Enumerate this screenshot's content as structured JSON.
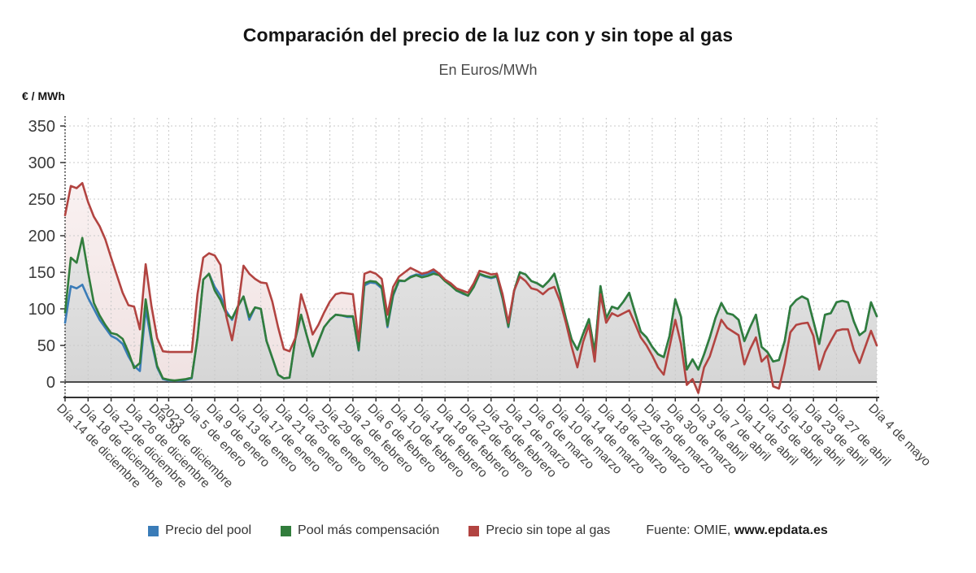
{
  "header": {
    "title": "Comparación del precio de la luz con y sin tope al gas",
    "subtitle": "En Euros/MWh"
  },
  "source": {
    "prefix": "Fuente: OMIE,",
    "site": "www.epdata.es"
  },
  "chart_data": {
    "type": "line",
    "title": "Comparación del precio de la luz con y sin tope al gas",
    "subtitle": "En Euros/MWh",
    "ylabel": "€ / MWh",
    "xlabel": "",
    "ylim": [
      -20,
      363
    ],
    "y_ticks": [
      0,
      50,
      100,
      150,
      200,
      250,
      300,
      350
    ],
    "grid": true,
    "legend_position": "bottom",
    "n_points": 142,
    "x_tick_positions": [
      0,
      4,
      8,
      12,
      16,
      18,
      22,
      26,
      30,
      34,
      38,
      42,
      46,
      50,
      54,
      58,
      62,
      66,
      70,
      74,
      78,
      82,
      86,
      90,
      94,
      98,
      102,
      106,
      110,
      114,
      118,
      122,
      126,
      130,
      134,
      141
    ],
    "x_tick_labels": [
      "Día 14 de diciembre",
      "Día 18 de diciembre",
      "Día 22 de diciembre",
      "Día 26 de diciembre",
      "Día 30 de diciembre",
      "2023",
      "Día 5 de enero",
      "Día 9 de enero",
      "Día 13 de enero",
      "Día 17 de enero",
      "Día 21 de enero",
      "Día 25 de enero",
      "Día 29 de enero",
      "Día 2 de febrero",
      "Día 6 de febrero",
      "Día 10 de febrero",
      "Día 14 de febrero",
      "Día 18 de febrero",
      "Día 22 de febrero",
      "Día 26 de febrero",
      "Día 2 de marzo",
      "Día 6 de marzo",
      "Día 10 de marzo",
      "Día 14 de marzo",
      "Día 18 de marzo",
      "Día 22 de marzo",
      "Día 26 de marzo",
      "Día 30 de marzo",
      "Día 3 de abril",
      "Día 7 de abril",
      "Día 11 de abril",
      "Día 15 de abril",
      "Día 19 de abril",
      "Día 23 de abril",
      "Día 27 de abril",
      "Día 4 de mayo"
    ],
    "series": [
      {
        "name": "Precio del pool",
        "color": "#3a7cb8",
        "area": null,
        "values": [
          81,
          131,
          128,
          133,
          115,
          100,
          85,
          74,
          63,
          59,
          52,
          35,
          22,
          15,
          100,
          55,
          20,
          4,
          2,
          2,
          2,
          3,
          5,
          60,
          140,
          148,
          130,
          118,
          97,
          85,
          103,
          117,
          85,
          102,
          100,
          56,
          33,
          10,
          5,
          6,
          59,
          92,
          63,
          35,
          55,
          75,
          85,
          92,
          91,
          89,
          89,
          43,
          132,
          136,
          135,
          128,
          75,
          118,
          138,
          138,
          144,
          147,
          146,
          148,
          151,
          148,
          139,
          132,
          125,
          121,
          118,
          130,
          147,
          144,
          142,
          144,
          114,
          75,
          124,
          150,
          147,
          138,
          135,
          130,
          138,
          148,
          120,
          87,
          58,
          44,
          66,
          86,
          41,
          131,
          87,
          103,
          100,
          110,
          122,
          95,
          69,
          61,
          48,
          38,
          34,
          63,
          113,
          89,
          17,
          31,
          17,
          38,
          61,
          88,
          108,
          94,
          92,
          85,
          56,
          75,
          92,
          48,
          41,
          28,
          30,
          56,
          103,
          112,
          117,
          113,
          83,
          52,
          92,
          94,
          109,
          111,
          109,
          83,
          64,
          70,
          109,
          90
        ]
      },
      {
        "name": "Pool más compensación",
        "color": "#317d3c",
        "area": {
          "top": "#f0f0f0",
          "bottom": "#d6d6d6"
        },
        "values": [
          95,
          170,
          163,
          197,
          150,
          108,
          91,
          78,
          67,
          65,
          59,
          41,
          19,
          26,
          113,
          61,
          22,
          5,
          3,
          2,
          3,
          4,
          6,
          60,
          140,
          148,
          125,
          112,
          93,
          87,
          103,
          117,
          89,
          102,
          100,
          56,
          33,
          10,
          5,
          6,
          59,
          92,
          63,
          35,
          55,
          75,
          85,
          92,
          91,
          90,
          90,
          44,
          135,
          138,
          137,
          130,
          77,
          120,
          139,
          138,
          143,
          146,
          143,
          145,
          148,
          146,
          138,
          132,
          125,
          122,
          118,
          130,
          148,
          145,
          143,
          145,
          115,
          76,
          125,
          150,
          147,
          138,
          135,
          130,
          138,
          148,
          120,
          87,
          58,
          44,
          66,
          86,
          41,
          131,
          87,
          103,
          100,
          110,
          122,
          95,
          69,
          61,
          48,
          38,
          34,
          63,
          113,
          89,
          17,
          31,
          17,
          38,
          61,
          88,
          108,
          94,
          92,
          85,
          56,
          75,
          92,
          48,
          41,
          28,
          30,
          56,
          103,
          112,
          117,
          113,
          83,
          52,
          92,
          94,
          109,
          111,
          109,
          83,
          64,
          70,
          109,
          90
        ]
      },
      {
        "name": "Precio sin tope al gas",
        "color": "#b24441",
        "area": {
          "top": "#fcf5f5",
          "bottom": "#f0e2e2"
        },
        "values": [
          228,
          268,
          265,
          272,
          246,
          226,
          213,
          195,
          170,
          146,
          122,
          105,
          103,
          72,
          161,
          104,
          60,
          42,
          41,
          41,
          41,
          41,
          41,
          120,
          170,
          176,
          173,
          160,
          90,
          57,
          100,
          159,
          148,
          141,
          136,
          135,
          110,
          75,
          45,
          42,
          60,
          120,
          95,
          65,
          78,
          95,
          110,
          120,
          122,
          121,
          120,
          56,
          148,
          151,
          148,
          141,
          92,
          130,
          144,
          150,
          156,
          152,
          148,
          150,
          154,
          148,
          140,
          135,
          128,
          125,
          122,
          135,
          152,
          150,
          147,
          148,
          120,
          81,
          125,
          144,
          138,
          128,
          126,
          120,
          127,
          130,
          110,
          81,
          48,
          20,
          55,
          78,
          28,
          120,
          81,
          94,
          90,
          94,
          98,
          80,
          61,
          50,
          36,
          20,
          10,
          48,
          85,
          52,
          -4,
          4,
          -15,
          20,
          35,
          60,
          85,
          74,
          69,
          64,
          24,
          45,
          61,
          28,
          36,
          -6,
          -9,
          25,
          68,
          78,
          80,
          81,
          63,
          17,
          41,
          56,
          70,
          72,
          72,
          44,
          26,
          48,
          70,
          50
        ]
      }
    ]
  }
}
